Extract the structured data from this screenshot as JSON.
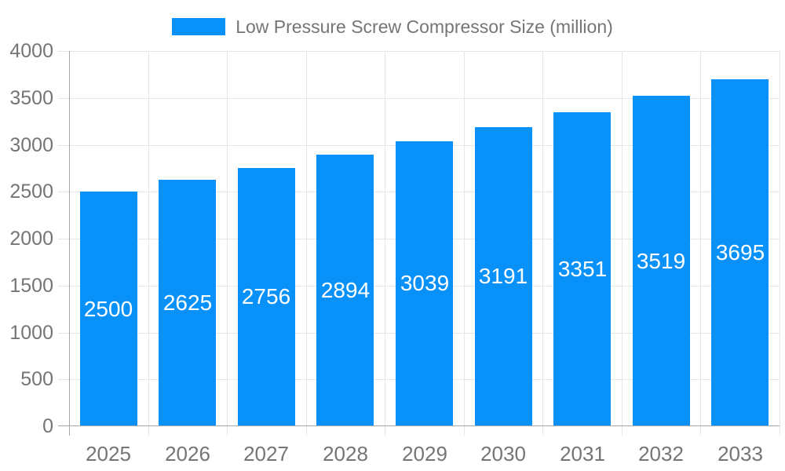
{
  "chart_data": {
    "type": "bar",
    "title": "Low Pressure Screw Compressor Size (million)",
    "legend_entries": [
      "Low Pressure Screw Compressor Size (million)"
    ],
    "legend_position": "top-center",
    "categories": [
      "2025",
      "2026",
      "2027",
      "2028",
      "2029",
      "2030",
      "2031",
      "2032",
      "2033"
    ],
    "values": [
      2500,
      2625,
      2756,
      2894,
      3039,
      3191,
      3351,
      3519,
      3695
    ],
    "xlabel": "",
    "ylabel": "",
    "ylim": [
      0,
      4000
    ],
    "yticks": [
      0,
      500,
      1000,
      1500,
      2000,
      2500,
      3000,
      3500,
      4000
    ],
    "grid": true,
    "bar_label_position": "inside-center",
    "colors": {
      "bar": "#0991FA",
      "bar_label": "#FFFFFF",
      "axis_text": "#757575",
      "gridline": "#E6E6E6",
      "axis_line": "#A6A6A6",
      "background": "#FFFFFF"
    }
  }
}
